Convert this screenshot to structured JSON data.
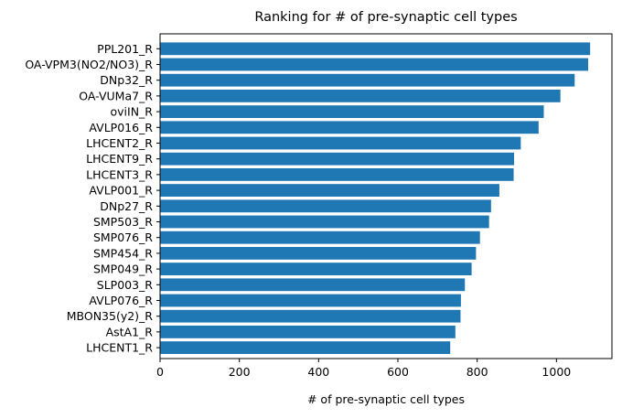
{
  "chart_data": {
    "type": "bar",
    "orientation": "horizontal",
    "title": "Ranking for # of pre-synaptic cell types",
    "xlabel": "# of pre-synaptic cell types",
    "ylabel": "",
    "xlim": [
      0,
      1140
    ],
    "xticks": [
      0,
      200,
      400,
      600,
      800,
      1000
    ],
    "bar_color": "#1f77b4",
    "grid": false,
    "legend": "none",
    "categories": [
      "PPL201_R",
      "OA-VPM3(NO2/NO3)_R",
      "DNp32_R",
      "OA-VUMa7_R",
      "oviIN_R",
      "AVLP016_R",
      "LHCENT2_R",
      "LHCENT9_R",
      "LHCENT3_R",
      "AVLP001_R",
      "DNp27_R",
      "SMP503_R",
      "SMP076_R",
      "SMP454_R",
      "SMP049_R",
      "SLP003_R",
      "AVLP076_R",
      "MBON35(y2)_R",
      "AstA1_R",
      "LHCENT1_R"
    ],
    "values": [
      1085,
      1080,
      1046,
      1010,
      968,
      955,
      910,
      893,
      892,
      856,
      835,
      830,
      807,
      797,
      786,
      769,
      759,
      758,
      745,
      732
    ]
  }
}
